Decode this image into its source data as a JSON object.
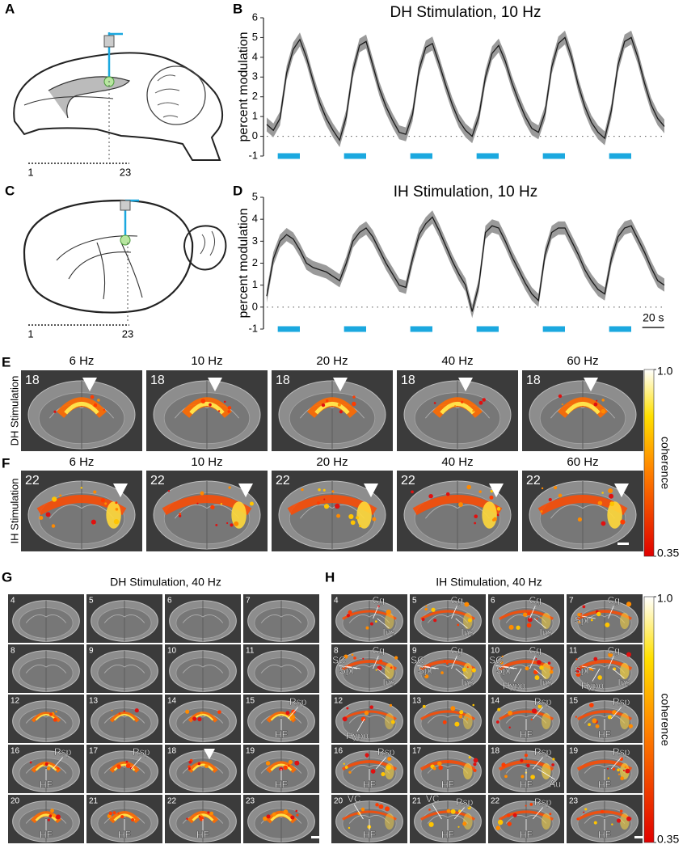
{
  "panel_A": {
    "letter": "A",
    "scale": [
      1,
      23
    ]
  },
  "panel_C": {
    "letter": "C",
    "scale": [
      1,
      23
    ]
  },
  "chart_letters": [
    "B",
    "D"
  ],
  "chart_data": [
    {
      "type": "line",
      "title": "DH Stimulation, 10 Hz",
      "y_label": "percent modulation",
      "x": [
        0,
        6,
        12,
        18,
        24,
        30,
        36,
        42,
        48,
        54,
        60,
        66,
        72,
        78,
        84,
        90,
        96,
        102,
        108,
        114,
        120,
        126,
        132,
        138,
        144,
        150,
        156,
        162,
        168,
        174,
        180,
        186,
        192,
        198,
        204,
        210,
        216,
        222,
        228,
        234,
        240,
        246,
        252,
        258,
        264,
        270,
        276,
        282,
        288,
        294,
        300,
        306,
        312,
        318,
        324,
        330,
        336,
        342,
        348,
        354,
        360
      ],
      "xlim": [
        0,
        360
      ],
      "ylim": [
        -1,
        6
      ],
      "yticks": [
        -1,
        0,
        1,
        2,
        3,
        4,
        5,
        6
      ],
      "reference_y": 0,
      "series": [
        {
          "color": "#1a1a1a",
          "error": 0.35,
          "error_color": "#9a9a9a",
          "values": [
            0.6,
            0.3,
            0.9,
            3.2,
            4.4,
            4.9,
            4.0,
            2.8,
            1.7,
            0.9,
            0.3,
            -0.2,
            1.0,
            3.3,
            4.6,
            4.8,
            3.6,
            2.4,
            1.5,
            0.8,
            0.2,
            0.1,
            1.1,
            3.4,
            4.5,
            4.7,
            3.7,
            2.6,
            1.6,
            0.8,
            0.3,
            0.0,
            1.0,
            3.0,
            4.2,
            4.6,
            3.8,
            2.7,
            1.8,
            1.0,
            0.4,
            0.2,
            1.2,
            3.5,
            4.7,
            5.0,
            4.0,
            2.6,
            1.5,
            0.7,
            0.2,
            -0.1,
            1.3,
            3.6,
            4.8,
            5.0,
            4.0,
            2.7,
            1.6,
            0.9,
            0.5
          ]
        }
      ],
      "stim": {
        "color": "#1ba8df",
        "level": -1,
        "blocks": [
          [
            10,
            30
          ],
          [
            70,
            90
          ],
          [
            130,
            150
          ],
          [
            190,
            210
          ],
          [
            250,
            270
          ],
          [
            310,
            330
          ]
        ]
      }
    },
    {
      "type": "line",
      "title": "IH Stimulation, 10 Hz",
      "y_label": "percent modulation",
      "x": [
        0,
        6,
        12,
        18,
        24,
        30,
        36,
        42,
        48,
        54,
        60,
        66,
        72,
        78,
        84,
        90,
        96,
        102,
        108,
        114,
        120,
        126,
        132,
        138,
        144,
        150,
        156,
        162,
        168,
        174,
        180,
        186,
        192,
        198,
        204,
        210,
        216,
        222,
        228,
        234,
        240,
        246,
        252,
        258,
        264,
        270,
        276,
        282,
        288,
        294,
        300,
        306,
        312,
        318,
        324,
        330,
        336,
        342,
        348,
        354,
        360
      ],
      "xlim": [
        0,
        360
      ],
      "ylim": [
        -1,
        5
      ],
      "yticks": [
        -1,
        0,
        1,
        2,
        3,
        4,
        5
      ],
      "reference_y": 0,
      "series": [
        {
          "color": "#1a1a1a",
          "error": 0.3,
          "error_color": "#9a9a9a",
          "values": [
            0.5,
            2.2,
            3.0,
            3.3,
            3.1,
            2.6,
            2.0,
            1.8,
            1.7,
            1.6,
            1.4,
            1.2,
            2.0,
            3.0,
            3.4,
            3.6,
            3.2,
            2.6,
            2.0,
            1.5,
            1.0,
            0.9,
            2.2,
            3.3,
            3.8,
            4.1,
            3.5,
            2.8,
            2.1,
            1.5,
            1.0,
            -0.2,
            1.0,
            3.4,
            3.7,
            3.6,
            3.0,
            2.3,
            1.7,
            1.1,
            0.6,
            0.3,
            2.4,
            3.4,
            3.6,
            3.6,
            3.0,
            2.4,
            1.7,
            1.2,
            0.8,
            0.6,
            2.2,
            3.2,
            3.6,
            3.7,
            3.1,
            2.5,
            1.8,
            1.2,
            1.0
          ]
        }
      ],
      "stim": {
        "color": "#1ba8df",
        "level": -1,
        "blocks": [
          [
            10,
            30
          ],
          [
            70,
            90
          ],
          [
            130,
            150
          ],
          [
            190,
            210
          ],
          [
            250,
            270
          ],
          [
            310,
            330
          ]
        ]
      },
      "scalebar": {
        "value": 20,
        "label": "20 s"
      }
    }
  ],
  "panel_E": {
    "letter": "E",
    "row_label": "DH Stimulation",
    "slice": 18,
    "frequencies": [
      "6 Hz",
      "10 Hz",
      "20 Hz",
      "40 Hz",
      "60 Hz"
    ]
  },
  "panel_F": {
    "letter": "F",
    "row_label": "IH Stimulation",
    "slice": 22,
    "frequencies": [
      "6 Hz",
      "10 Hz",
      "20 Hz",
      "40 Hz",
      "60 Hz"
    ]
  },
  "colorbar": {
    "label": "coherence",
    "ticks": [
      {
        "value": 1,
        "label": "1.0"
      },
      0.35
    ]
  },
  "panel_G": {
    "letter": "G",
    "title": "DH Stimulation, 40 Hz",
    "slices": [
      {
        "number": 4,
        "labels": []
      },
      {
        "number": 5,
        "labels": []
      },
      {
        "number": 6,
        "labels": []
      },
      {
        "number": 7,
        "labels": []
      },
      {
        "number": 8,
        "labels": []
      },
      {
        "number": 9,
        "labels": []
      },
      {
        "number": 10,
        "labels": []
      },
      {
        "number": 11,
        "labels": []
      },
      {
        "number": 12,
        "labels": []
      },
      {
        "number": 13,
        "labels": []
      },
      {
        "number": 14,
        "labels": []
      },
      {
        "number": 15,
        "labels": [
          "Rsp",
          "HF"
        ]
      },
      {
        "number": 16,
        "labels": [
          "Rsp",
          "HF"
        ]
      },
      {
        "number": 17,
        "labels": [
          "Rsp"
        ]
      },
      {
        "number": 18,
        "labels": []
      },
      {
        "number": 19,
        "labels": [
          "HF"
        ]
      },
      {
        "number": 20,
        "labels": [
          "HF"
        ]
      },
      {
        "number": 21,
        "labels": [
          "HF"
        ]
      },
      {
        "number": 22,
        "labels": [
          "HF"
        ]
      },
      {
        "number": 23,
        "labels": []
      }
    ]
  },
  "panel_H": {
    "letter": "H",
    "title": "IH Stimulation, 40 Hz",
    "slices": [
      {
        "number": 4,
        "labels": [
          "Cg",
          "Ins"
        ]
      },
      {
        "number": 5,
        "labels": [
          "Cg",
          "Ins"
        ]
      },
      {
        "number": 6,
        "labels": [
          "Cg",
          "Ins"
        ]
      },
      {
        "number": 7,
        "labels": [
          "Cg",
          "Spt"
        ]
      },
      {
        "number": 8,
        "labels": [
          "Cg",
          "SC",
          "Spt",
          "Ins"
        ]
      },
      {
        "number": 9,
        "labels": [
          "Cg",
          "SC",
          "Spt",
          "Ins"
        ]
      },
      {
        "number": 10,
        "labels": [
          "Cg",
          "SC",
          "Spt",
          "Hypo",
          "Ins"
        ]
      },
      {
        "number": 11,
        "labels": [
          "Cg",
          "Spt",
          "Hypo",
          "Ins"
        ]
      },
      {
        "number": 12,
        "labels": [
          "Hypo"
        ]
      },
      {
        "number": 13,
        "labels": []
      },
      {
        "number": 14,
        "labels": [
          "Rsp",
          "HF"
        ]
      },
      {
        "number": 15,
        "labels": [
          "Rsp",
          "HF"
        ]
      },
      {
        "number": 16,
        "labels": [
          "Rsp",
          "HF"
        ]
      },
      {
        "number": 17,
        "labels": [
          "HF"
        ]
      },
      {
        "number": 18,
        "labels": [
          "Rsp",
          "HF",
          "Au"
        ]
      },
      {
        "number": 19,
        "labels": [
          "Rsp",
          "HF"
        ]
      },
      {
        "number": 20,
        "labels": [
          "VC",
          "HF"
        ]
      },
      {
        "number": 21,
        "labels": [
          "VC",
          "Rsp",
          "HF"
        ]
      },
      {
        "number": 22,
        "labels": [
          "Rsp",
          "HF"
        ]
      },
      {
        "number": 23,
        "labels": [
          "HF"
        ]
      }
    ]
  }
}
